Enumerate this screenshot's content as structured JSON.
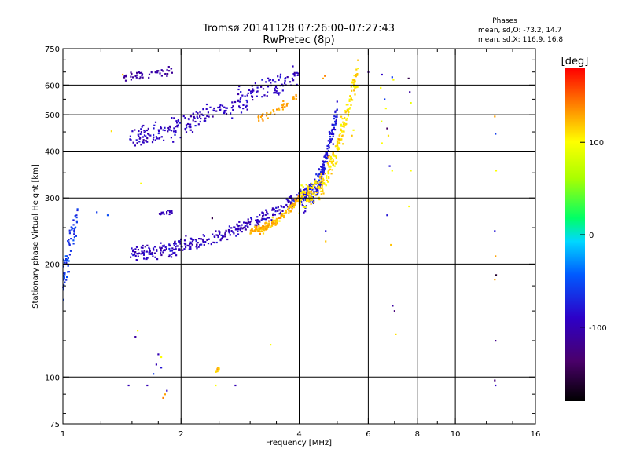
{
  "colors": {
    "background": "#ffffff",
    "axes": "#000000"
  },
  "chart_data": {
    "type": "scatter",
    "title_line1": "Tromsø 20141128 07:26:00–07:27:43",
    "title_line2": "RwPretec (8p)",
    "stats": {
      "heading": "Phases",
      "line_o": "mean, sd,O: -73.2, 14.7",
      "line_x": "mean, sd,X: 116.9, 16.8"
    },
    "xlabel": "Frequency [MHz]",
    "ylabel": "Stationary phase Virtual Height [km]",
    "x_scale": "log",
    "y_scale": "log",
    "xlim": [
      1,
      16
    ],
    "ylim": [
      75,
      750
    ],
    "x_ticks": [
      1,
      2,
      4,
      6,
      8,
      10,
      16
    ],
    "y_ticks": [
      75,
      100,
      200,
      300,
      400,
      500,
      600,
      750
    ],
    "x_grid": [
      2,
      4,
      6,
      8,
      10
    ],
    "y_grid": [
      100,
      200,
      300,
      400,
      500,
      600
    ],
    "grid": true,
    "colorbar": {
      "label": "[deg]",
      "ticks": [
        100,
        0,
        -100
      ],
      "range": [
        -180,
        180
      ],
      "colormap": "rainbow-black-to-red"
    },
    "traces": [
      {
        "name": "F2 O-mode trace",
        "x_start": 1.48,
        "x_end": 4.0,
        "y_start": 215,
        "y_end": 300,
        "y_power": 2.0,
        "phase": -95,
        "phase_sd": 14,
        "density": 320,
        "spread_y": 0.03
      },
      {
        "name": "F2 O-mode cusp",
        "x_start": 4.0,
        "x_end": 5.0,
        "y_start": 300,
        "y_end": 520,
        "y_power": 2.8,
        "phase": -78,
        "phase_sd": 10,
        "density": 220,
        "spread_y": 0.05
      },
      {
        "name": "F2 X-mode trace",
        "x_start": 3.0,
        "x_end": 4.0,
        "y_start": 245,
        "y_end": 300,
        "y_power": 2.0,
        "phase": 125,
        "phase_sd": 12,
        "density": 160,
        "spread_y": 0.02
      },
      {
        "name": "F2 X-mode cusp",
        "x_start": 4.0,
        "x_end": 5.65,
        "y_start": 300,
        "y_end": 650,
        "y_power": 2.6,
        "phase": 110,
        "phase_sd": 12,
        "density": 260,
        "spread_y": 0.06
      },
      {
        "name": "Upper O-mode echo",
        "x_start": 1.48,
        "x_end": 4.0,
        "y_start": 430,
        "y_end": 640,
        "y_power": 1.4,
        "phase": -92,
        "phase_sd": 12,
        "density": 260,
        "spread_y": 0.05
      },
      {
        "name": "Upper X-mode echo",
        "x_start": 3.1,
        "x_end": 3.95,
        "y_start": 490,
        "y_end": 560,
        "y_power": 1.5,
        "phase": 130,
        "phase_sd": 10,
        "density": 40,
        "spread_y": 0.02
      },
      {
        "name": "Top trace",
        "x_start": 1.42,
        "x_end": 1.92,
        "y_start": 630,
        "y_end": 655,
        "y_power": 1.0,
        "phase": -110,
        "phase_sd": 8,
        "density": 45,
        "spread_y": 0.015
      },
      {
        "name": "Low frequency cluster",
        "x_start": 1.0,
        "x_end": 1.09,
        "y_start": 180,
        "y_end": 270,
        "y_power": 1.0,
        "phase": -60,
        "phase_sd": 12,
        "density": 70,
        "spread_y": 0.08
      },
      {
        "name": "Mid trace 275km",
        "x_start": 1.75,
        "x_end": 1.9,
        "y_start": 272,
        "y_end": 276,
        "y_power": 1.0,
        "phase": -100,
        "phase_sd": 8,
        "density": 18,
        "spread_y": 0.01
      },
      {
        "name": "Low echo near 100km",
        "x_start": 2.45,
        "x_end": 2.5,
        "y_start": 103,
        "y_end": 106,
        "y_power": 1.0,
        "phase": 120,
        "phase_sd": 10,
        "density": 10,
        "spread_y": 0.01
      }
    ],
    "points": [
      {
        "x": 1.42,
        "y": 640,
        "phase": 120
      },
      {
        "x": 1.33,
        "y": 452,
        "phase": 110
      },
      {
        "x": 1.3,
        "y": 270,
        "phase": -50
      },
      {
        "x": 1.22,
        "y": 275,
        "phase": -60
      },
      {
        "x": 1.58,
        "y": 328,
        "phase": 100
      },
      {
        "x": 1.55,
        "y": 133,
        "phase": 100
      },
      {
        "x": 1.53,
        "y": 128,
        "phase": -110
      },
      {
        "x": 1.75,
        "y": 115,
        "phase": -100
      },
      {
        "x": 1.78,
        "y": 113,
        "phase": 100
      },
      {
        "x": 1.73,
        "y": 108,
        "phase": -100
      },
      {
        "x": 1.78,
        "y": 106,
        "phase": -80
      },
      {
        "x": 1.7,
        "y": 102,
        "phase": -60
      },
      {
        "x": 1.82,
        "y": 90,
        "phase": 130
      },
      {
        "x": 1.84,
        "y": 92,
        "phase": -90
      },
      {
        "x": 1.8,
        "y": 88,
        "phase": 140
      },
      {
        "x": 1.47,
        "y": 95,
        "phase": -100
      },
      {
        "x": 1.64,
        "y": 95,
        "phase": -100
      },
      {
        "x": 2.45,
        "y": 95,
        "phase": 100
      },
      {
        "x": 2.75,
        "y": 95,
        "phase": -100
      },
      {
        "x": 3.38,
        "y": 122,
        "phase": 100
      },
      {
        "x": 4.67,
        "y": 230,
        "phase": 120
      },
      {
        "x": 4.67,
        "y": 245,
        "phase": -80
      },
      {
        "x": 4.6,
        "y": 625,
        "phase": 130
      },
      {
        "x": 4.65,
        "y": 635,
        "phase": 140
      },
      {
        "x": 6.0,
        "y": 650,
        "phase": -120
      },
      {
        "x": 6.5,
        "y": 640,
        "phase": -90
      },
      {
        "x": 6.45,
        "y": 590,
        "phase": 100
      },
      {
        "x": 6.6,
        "y": 550,
        "phase": -60
      },
      {
        "x": 6.65,
        "y": 520,
        "phase": 100
      },
      {
        "x": 6.48,
        "y": 480,
        "phase": 90
      },
      {
        "x": 6.7,
        "y": 460,
        "phase": -140
      },
      {
        "x": 6.75,
        "y": 440,
        "phase": 110
      },
      {
        "x": 6.5,
        "y": 420,
        "phase": 100
      },
      {
        "x": 6.8,
        "y": 365,
        "phase": -80
      },
      {
        "x": 6.9,
        "y": 355,
        "phase": 100
      },
      {
        "x": 6.7,
        "y": 270,
        "phase": -80
      },
      {
        "x": 6.85,
        "y": 225,
        "phase": 120
      },
      {
        "x": 6.9,
        "y": 630,
        "phase": -60
      },
      {
        "x": 6.95,
        "y": 620,
        "phase": 100
      },
      {
        "x": 6.92,
        "y": 155,
        "phase": -110
      },
      {
        "x": 7.0,
        "y": 150,
        "phase": -130
      },
      {
        "x": 7.05,
        "y": 130,
        "phase": 110
      },
      {
        "x": 7.6,
        "y": 625,
        "phase": -150
      },
      {
        "x": 7.65,
        "y": 575,
        "phase": -110
      },
      {
        "x": 7.7,
        "y": 355,
        "phase": 100
      },
      {
        "x": 7.62,
        "y": 285,
        "phase": 100
      },
      {
        "x": 7.7,
        "y": 538,
        "phase": 90
      },
      {
        "x": 12.6,
        "y": 495,
        "phase": 130
      },
      {
        "x": 12.65,
        "y": 445,
        "phase": -60
      },
      {
        "x": 12.7,
        "y": 355,
        "phase": 100
      },
      {
        "x": 12.6,
        "y": 245,
        "phase": -80
      },
      {
        "x": 12.65,
        "y": 210,
        "phase": 130
      },
      {
        "x": 12.7,
        "y": 187,
        "phase": -160
      },
      {
        "x": 12.6,
        "y": 182,
        "phase": 130
      },
      {
        "x": 12.65,
        "y": 125,
        "phase": -120
      },
      {
        "x": 12.6,
        "y": 98,
        "phase": -130
      },
      {
        "x": 12.65,
        "y": 95,
        "phase": -90
      },
      {
        "x": 5.5,
        "y": 455,
        "phase": 100
      },
      {
        "x": 5.45,
        "y": 440,
        "phase": 120
      },
      {
        "x": 2.4,
        "y": 265,
        "phase": -150
      }
    ]
  }
}
